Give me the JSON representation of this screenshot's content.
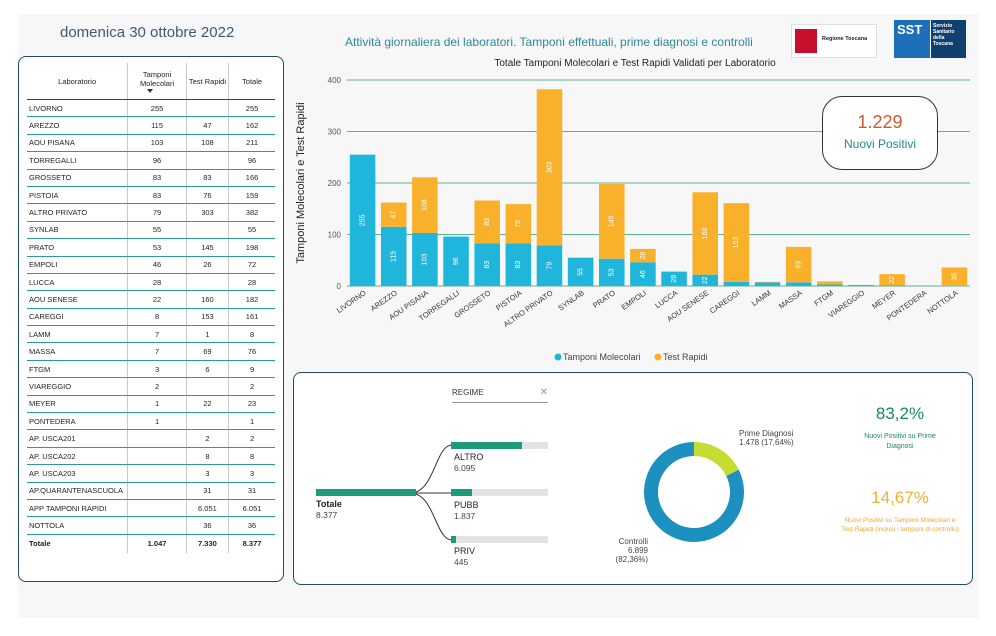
{
  "header": {
    "date": "domenica 30 ottobre 2022",
    "subtitle": "Attività giornaliera dei laboratori. Tamponi effettuali, prime diagnosi e controlli",
    "logo_regione": "Regione Toscana",
    "logo_sst_abbr": "SST",
    "logo_sst_text": "Servizio Sanitario della Toscana"
  },
  "table": {
    "headers": [
      "Laboratorio",
      "Tamponi Molecolari",
      "Test Rapidi",
      "Totale"
    ],
    "rows": [
      [
        "LIVORNO",
        "255",
        "",
        "255"
      ],
      [
        "AREZZO",
        "115",
        "47",
        "162"
      ],
      [
        "AOU PISANA",
        "103",
        "108",
        "211"
      ],
      [
        "TORREGALLI",
        "96",
        "",
        "96"
      ],
      [
        "GROSSETO",
        "83",
        "83",
        "166"
      ],
      [
        "PISTOIA",
        "83",
        "76",
        "159"
      ],
      [
        "ALTRO PRIVATO",
        "79",
        "303",
        "382"
      ],
      [
        "SYNLAB",
        "55",
        "",
        "55"
      ],
      [
        "PRATO",
        "53",
        "145",
        "198"
      ],
      [
        "EMPOLI",
        "46",
        "26",
        "72"
      ],
      [
        "LUCCA",
        "28",
        "",
        "28"
      ],
      [
        "AOU SENESE",
        "22",
        "160",
        "182"
      ],
      [
        "CAREGGI",
        "8",
        "153",
        "161"
      ],
      [
        "LAMM",
        "7",
        "1",
        "8"
      ],
      [
        "MASSA",
        "7",
        "69",
        "76"
      ],
      [
        "FTGM",
        "3",
        "6",
        "9"
      ],
      [
        "VIAREGGIO",
        "2",
        "",
        "2"
      ],
      [
        "MEYER",
        "1",
        "22",
        "23"
      ],
      [
        "PONTEDERA",
        "1",
        "",
        "1"
      ],
      [
        "AP. USCA201",
        "",
        "2",
        "2"
      ],
      [
        "AP. USCA202",
        "",
        "8",
        "8"
      ],
      [
        "AP. USCA203",
        "",
        "3",
        "3"
      ],
      [
        "AP.QUARANTENASCUOLA",
        "",
        "31",
        "31"
      ],
      [
        "APP TAMPONI RAPIDI",
        "",
        "6.051",
        "6.051"
      ],
      [
        "NOTTOLA",
        "",
        "36",
        "36"
      ]
    ],
    "total": [
      "Totale",
      "1.047",
      "7.330",
      "8.377"
    ]
  },
  "chart_data": {
    "type": "bar",
    "stacked": true,
    "title": "Totale Tamponi Molecolari e Test Rapidi Validati per Laboratorio",
    "ylabel": "Tamponi Molecolari e Test Rapidi",
    "ylim": [
      0,
      400
    ],
    "yticks": [
      0,
      100,
      200,
      300,
      400
    ],
    "categories": [
      "LIVORNO",
      "AREZZO",
      "AOU PISANA",
      "TORREGALLI",
      "GROSSETO",
      "PISTOIA",
      "ALTRO PRIVATO",
      "SYNLAB",
      "PRATO",
      "EMPOLI",
      "LUCCA",
      "AOU SENESE",
      "CAREGGI",
      "LAMM",
      "MASSA",
      "FTGM",
      "VIAREGGIO",
      "MEYER",
      "PONTEDERA",
      "NOTTOLA"
    ],
    "series": [
      {
        "name": "Tamponi Molecolari",
        "color": "#20b6dc",
        "values": [
          255,
          115,
          103,
          96,
          83,
          83,
          79,
          55,
          53,
          46,
          28,
          22,
          8,
          7,
          7,
          3,
          2,
          1,
          1,
          0
        ]
      },
      {
        "name": "Test Rapidi",
        "color": "#f9b12c",
        "values": [
          0,
          47,
          108,
          0,
          83,
          76,
          303,
          0,
          145,
          26,
          0,
          160,
          153,
          1,
          69,
          6,
          0,
          22,
          0,
          36
        ]
      }
    ],
    "legend_position": "bottom",
    "grid": true
  },
  "kpi_nuovi_positivi": {
    "value": "1.229",
    "label": "Nuovi Positivi"
  },
  "decomposition": {
    "filter_label": "REGIME",
    "root": {
      "label": "Totale",
      "value": "8.377"
    },
    "branches": [
      {
        "label": "ALTRO",
        "value": "6.095",
        "share": 0.7276
      },
      {
        "label": "PUBB",
        "value": "1.837",
        "share": 0.2193
      },
      {
        "label": "PRIV",
        "value": "445",
        "share": 0.0531
      }
    ]
  },
  "donut": {
    "slices": [
      {
        "name": "Prime Diagnosi",
        "label": "1.478 (17,64%)",
        "value": 1478,
        "color": "#c5dc32"
      },
      {
        "name": "Controlli",
        "label": "6.899 (82,36%)",
        "value": 6899,
        "color": "#1c91c0"
      }
    ]
  },
  "kpi_prime_diagnosi": {
    "value": "83,2%",
    "label": "Nuovi Positivi su Prime Diagnosi"
  },
  "kpi_tamponi": {
    "value": "14,67%",
    "label": "Nuovi Positivi su Tamponi Molecolari e Test Rapidi (inclusi i tamponi di controllo)"
  }
}
